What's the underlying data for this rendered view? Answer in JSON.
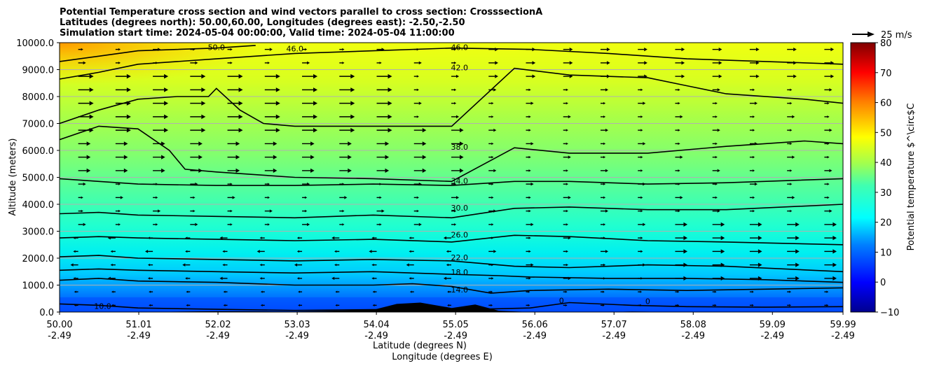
{
  "chart_data": {
    "type": "heatmap",
    "title_lines": [
      "Potential Temperature cross section and wind vectors parallel to cross section: CrosssectionA",
      "Latitudes (degrees north): 50.00,60.00, Longitudes (degrees east): -2.50,-2.50",
      "Simulation start time: 2024-05-04 00:00:00, Valid time: 2024-05-04 11:00:00"
    ],
    "ylabel": "Altitude (meters)",
    "xlabel_lines": [
      "Latitude (degrees N)",
      "Longitude (degrees E)"
    ],
    "ylim": [
      0,
      10000
    ],
    "y_ticks": [
      0,
      1000,
      2000,
      3000,
      4000,
      5000,
      6000,
      7000,
      8000,
      9000,
      10000
    ],
    "y_tick_labels": [
      "0.0",
      "1000.0",
      "2000.0",
      "3000.0",
      "4000.0",
      "5000.0",
      "6000.0",
      "7000.0",
      "8000.0",
      "9000.0",
      "10000.0"
    ],
    "x_ticks_lat": [
      "50.00",
      "51.01",
      "52.02",
      "53.03",
      "54.04",
      "55.05",
      "56.06",
      "57.07",
      "58.08",
      "59.09",
      "59.99"
    ],
    "x_ticks_lon": [
      "-2.49",
      "-2.49",
      "-2.49",
      "-2.49",
      "-2.49",
      "-2.49",
      "-2.49",
      "-2.49",
      "-2.49",
      "-2.49",
      "-2.49"
    ],
    "grid": "horizontal",
    "colorbar": {
      "label": "Potential temperature $^\\circ$C",
      "range": [
        -10,
        80
      ],
      "ticks": [
        "-10",
        "0",
        "10",
        "20",
        "30",
        "40",
        "50",
        "60",
        "70",
        "80"
      ],
      "colormap": "jet"
    },
    "wind_reference_label": "25 m/s",
    "contour_labels": [
      {
        "text": "50.0",
        "lat": 52.0,
        "alt": 9800
      },
      {
        "text": "46.0",
        "lat": 53.0,
        "alt": 9750
      },
      {
        "text": "46.0",
        "lat": 55.1,
        "alt": 9800
      },
      {
        "text": "42.0",
        "lat": 55.1,
        "alt": 9050
      },
      {
        "text": "38.0",
        "lat": 55.1,
        "alt": 6100
      },
      {
        "text": "34.0",
        "lat": 55.1,
        "alt": 4850
      },
      {
        "text": "30.0",
        "lat": 55.1,
        "alt": 3850
      },
      {
        "text": "26.0",
        "lat": 55.1,
        "alt": 2850
      },
      {
        "text": "22.0",
        "lat": 55.1,
        "alt": 2000
      },
      {
        "text": "18.0",
        "lat": 55.1,
        "alt": 1450
      },
      {
        "text": "14.0",
        "lat": 55.1,
        "alt": 800
      },
      {
        "text": "10.0",
        "lat": 50.55,
        "alt": 200
      },
      {
        "text": "0",
        "lat": 56.4,
        "alt": 400
      },
      {
        "text": "0",
        "lat": 57.5,
        "alt": 380
      }
    ],
    "contours": [
      {
        "level": 10,
        "points": [
          [
            50.0,
            300
          ],
          [
            50.5,
            250
          ],
          [
            51.0,
            150
          ],
          [
            52.0,
            100
          ],
          [
            53.0,
            60
          ],
          [
            54.0,
            90
          ],
          [
            55.0,
            80
          ],
          [
            56.0,
            150
          ],
          [
            56.5,
            350
          ],
          [
            57.3,
            250
          ],
          [
            58.0,
            200
          ],
          [
            59.0,
            180
          ],
          [
            59.99,
            200
          ]
        ]
      },
      {
        "level": 14,
        "points": [
          [
            50.0,
            1180
          ],
          [
            50.5,
            1250
          ],
          [
            51.0,
            1150
          ],
          [
            52.0,
            1100
          ],
          [
            53.0,
            1000
          ],
          [
            54.0,
            1000
          ],
          [
            54.5,
            1050
          ],
          [
            55.0,
            950
          ],
          [
            55.5,
            700
          ],
          [
            56.0,
            800
          ],
          [
            57.0,
            850
          ],
          [
            58.0,
            800
          ],
          [
            59.0,
            850
          ],
          [
            59.99,
            900
          ]
        ]
      },
      {
        "level": 18,
        "points": [
          [
            50.0,
            1550
          ],
          [
            50.5,
            1600
          ],
          [
            51.0,
            1550
          ],
          [
            52.0,
            1500
          ],
          [
            53.0,
            1450
          ],
          [
            54.0,
            1500
          ],
          [
            55.0,
            1400
          ],
          [
            55.6,
            1350
          ],
          [
            56.0,
            1300
          ],
          [
            57.0,
            1250
          ],
          [
            58.0,
            1250
          ],
          [
            59.0,
            1200
          ],
          [
            59.99,
            1100
          ]
        ]
      },
      {
        "level": 22,
        "points": [
          [
            50.0,
            2050
          ],
          [
            50.5,
            2100
          ],
          [
            51.0,
            2000
          ],
          [
            52.0,
            1950
          ],
          [
            53.0,
            1900
          ],
          [
            54.0,
            1950
          ],
          [
            55.0,
            1900
          ],
          [
            55.8,
            1700
          ],
          [
            56.5,
            1650
          ],
          [
            57.5,
            1750
          ],
          [
            58.5,
            1700
          ],
          [
            59.99,
            1500
          ]
        ]
      },
      {
        "level": 26,
        "points": [
          [
            50.0,
            2750
          ],
          [
            50.5,
            2800
          ],
          [
            51.0,
            2750
          ],
          [
            52.0,
            2700
          ],
          [
            53.0,
            2650
          ],
          [
            54.0,
            2700
          ],
          [
            55.0,
            2600
          ],
          [
            55.8,
            2850
          ],
          [
            56.5,
            2800
          ],
          [
            57.5,
            2650
          ],
          [
            58.5,
            2600
          ],
          [
            59.99,
            2500
          ]
        ]
      },
      {
        "level": 30,
        "points": [
          [
            50.0,
            3650
          ],
          [
            50.5,
            3700
          ],
          [
            51.0,
            3600
          ],
          [
            52.0,
            3550
          ],
          [
            53.0,
            3500
          ],
          [
            54.0,
            3600
          ],
          [
            55.0,
            3500
          ],
          [
            55.8,
            3850
          ],
          [
            56.5,
            3900
          ],
          [
            57.5,
            3800
          ],
          [
            58.5,
            3800
          ],
          [
            59.99,
            4000
          ]
        ]
      },
      {
        "level": 34,
        "points": [
          [
            50.0,
            4950
          ],
          [
            50.5,
            4850
          ],
          [
            51.0,
            4750
          ],
          [
            52.0,
            4700
          ],
          [
            53.0,
            4700
          ],
          [
            54.0,
            4750
          ],
          [
            55.0,
            4700
          ],
          [
            55.8,
            4850
          ],
          [
            56.5,
            4850
          ],
          [
            57.5,
            4750
          ],
          [
            58.5,
            4800
          ],
          [
            59.99,
            4950
          ]
        ]
      },
      {
        "level": 38,
        "points": [
          [
            50.0,
            6400
          ],
          [
            50.5,
            6900
          ],
          [
            51.0,
            6800
          ],
          [
            51.4,
            6000
          ],
          [
            51.6,
            5300
          ],
          [
            52.0,
            5200
          ],
          [
            53.0,
            5000
          ],
          [
            54.0,
            4950
          ],
          [
            55.0,
            4850
          ],
          [
            55.8,
            6100
          ],
          [
            56.5,
            5900
          ],
          [
            57.5,
            5900
          ],
          [
            58.5,
            6150
          ],
          [
            59.5,
            6350
          ],
          [
            59.99,
            6250
          ]
        ]
      },
      {
        "level": 42,
        "points": [
          [
            50.0,
            7000
          ],
          [
            50.5,
            7500
          ],
          [
            51.0,
            7900
          ],
          [
            51.5,
            8000
          ],
          [
            51.9,
            8000
          ],
          [
            52.0,
            8300
          ],
          [
            52.3,
            7500
          ],
          [
            52.6,
            7000
          ],
          [
            53.0,
            6900
          ],
          [
            54.0,
            6900
          ],
          [
            55.0,
            6900
          ],
          [
            55.8,
            9050
          ],
          [
            56.5,
            8800
          ],
          [
            57.5,
            8700
          ],
          [
            58.0,
            8400
          ],
          [
            58.5,
            8100
          ],
          [
            59.5,
            7900
          ],
          [
            59.99,
            7750
          ]
        ]
      },
      {
        "level": 46,
        "points": [
          [
            50.0,
            8650
          ],
          [
            50.5,
            8900
          ],
          [
            51.0,
            9200
          ],
          [
            52.0,
            9400
          ],
          [
            53.0,
            9600
          ],
          [
            54.0,
            9700
          ],
          [
            55.0,
            9800
          ],
          [
            56.0,
            9750
          ],
          [
            57.0,
            9600
          ],
          [
            58.0,
            9400
          ],
          [
            59.0,
            9300
          ],
          [
            59.99,
            9200
          ]
        ]
      },
      {
        "level": 50,
        "points": [
          [
            50.0,
            9300
          ],
          [
            50.5,
            9500
          ],
          [
            51.0,
            9700
          ],
          [
            52.0,
            9800
          ],
          [
            52.5,
            9900
          ]
        ]
      }
    ],
    "terrain": [
      [
        50.0,
        0
      ],
      [
        51.0,
        0
      ],
      [
        52.0,
        30
      ],
      [
        53.0,
        20
      ],
      [
        54.0,
        80
      ],
      [
        54.3,
        300
      ],
      [
        54.6,
        350
      ],
      [
        55.0,
        150
      ],
      [
        55.3,
        280
      ],
      [
        55.6,
        50
      ],
      [
        56.0,
        0
      ],
      [
        57.0,
        0
      ],
      [
        57.3,
        20
      ],
      [
        58.0,
        0
      ],
      [
        59.99,
        0
      ]
    ],
    "wind_field_description_levels": []
  }
}
